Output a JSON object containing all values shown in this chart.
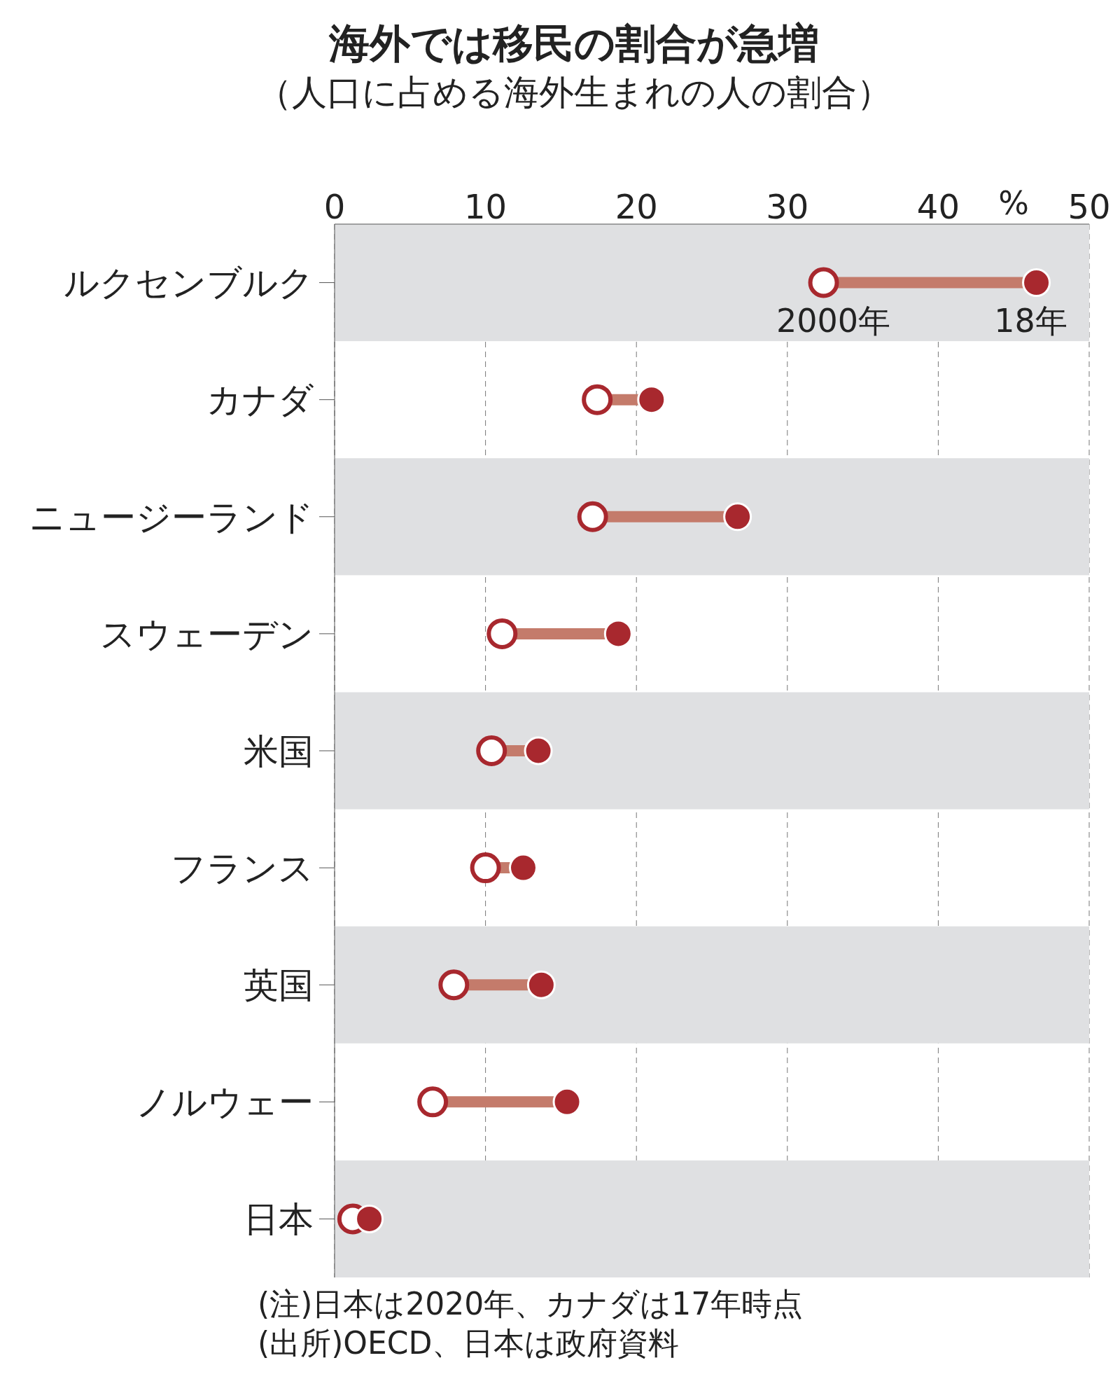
{
  "chart_data": {
    "type": "scatter",
    "title": "海外では移民の割合が急増",
    "subtitle": "（人口に占める海外生まれの人の割合）",
    "xlabel": "%",
    "categories": [
      "ルクセンブルク",
      "カナダ",
      "ニュージーランド",
      "スウェーデン",
      "米国",
      "フランス",
      "英国",
      "ノルウェー",
      "日本"
    ],
    "series": [
      {
        "name": "2000年",
        "color": "#a8282e",
        "values": [
          32.4,
          17.4,
          17.1,
          11.1,
          10.4,
          10.0,
          7.9,
          6.5,
          1.2
        ]
      },
      {
        "name": "18年",
        "color": "#a8282e",
        "values": [
          46.5,
          21.0,
          26.7,
          18.8,
          13.5,
          12.5,
          13.7,
          15.4,
          2.3
        ]
      }
    ],
    "orientation": "horizontal",
    "xlim": [
      0,
      50
    ],
    "xticks": [
      0,
      10,
      20,
      30,
      40,
      50
    ],
    "grid": "x",
    "marker": "circle",
    "annotations": [
      "(注)日本は2020年、カナダは17年時点",
      "(出所)OECD、日本は政府資料"
    ]
  }
}
